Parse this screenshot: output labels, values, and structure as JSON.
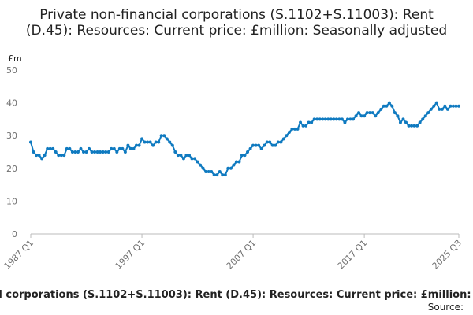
{
  "chart_data": {
    "type": "line",
    "title": "Private non-financial corporations (S.1102+S.11003): Rent (D.45): Resources: Current price: £million: Seasonally adjusted",
    "y_label": "£m",
    "source_label": "Source:",
    "categories": [
      "1987 Q1",
      null,
      null,
      null,
      null,
      null,
      null,
      null,
      null,
      null,
      null,
      null,
      null,
      null,
      null,
      null,
      null,
      null,
      null,
      null,
      null,
      null,
      null,
      null,
      null,
      null,
      null,
      null,
      null,
      null,
      null,
      null,
      null,
      null,
      null,
      null,
      null,
      null,
      null,
      null,
      "1997 Q1",
      null,
      null,
      null,
      null,
      null,
      null,
      null,
      null,
      null,
      null,
      null,
      null,
      null,
      null,
      null,
      null,
      null,
      null,
      null,
      null,
      null,
      null,
      null,
      null,
      null,
      null,
      null,
      null,
      null,
      null,
      null,
      null,
      null,
      null,
      null,
      null,
      null,
      null,
      null,
      "2007 Q1",
      null,
      null,
      null,
      null,
      null,
      null,
      null,
      null,
      null,
      null,
      null,
      null,
      null,
      null,
      null,
      null,
      null,
      null,
      null,
      null,
      null,
      null,
      null,
      null,
      null,
      null,
      null,
      null,
      null,
      null,
      null,
      null,
      null,
      null,
      null,
      null,
      null,
      null,
      null,
      "2017 Q1",
      null,
      null,
      null,
      null,
      null,
      null,
      null,
      null,
      null,
      null,
      null,
      null,
      null,
      null,
      null,
      null,
      null,
      null,
      null,
      null,
      null,
      null,
      null,
      null,
      null,
      null,
      null,
      null,
      null,
      null,
      null,
      null,
      null,
      "2025 Q3"
    ],
    "series": [
      {
        "name": "Rent",
        "color": "#0f7ac0",
        "values": [
          28,
          25,
          24,
          24,
          23,
          24,
          26,
          26,
          26,
          25,
          24,
          24,
          24,
          26,
          26,
          25,
          25,
          25,
          26,
          25,
          25,
          26,
          25,
          25,
          25,
          25,
          25,
          25,
          25,
          26,
          26,
          25,
          26,
          26,
          25,
          27,
          26,
          26,
          27,
          27,
          29,
          28,
          28,
          28,
          27,
          28,
          28,
          30,
          30,
          29,
          28,
          27,
          25,
          24,
          24,
          23,
          24,
          24,
          23,
          23,
          22,
          21,
          20,
          19,
          19,
          19,
          18,
          18,
          19,
          18,
          18,
          20,
          20,
          21,
          22,
          22,
          24,
          24,
          25,
          26,
          27,
          27,
          27,
          26,
          27,
          28,
          28,
          27,
          27,
          28,
          28,
          29,
          30,
          31,
          32,
          32,
          32,
          34,
          33,
          33,
          34,
          34,
          35,
          35,
          35,
          35,
          35,
          35,
          35,
          35,
          35,
          35,
          35,
          34,
          35,
          35,
          35,
          36,
          37,
          36,
          36,
          37,
          37,
          37,
          36,
          37,
          38,
          39,
          39,
          40,
          39,
          37,
          36,
          34,
          35,
          34,
          33,
          33,
          33,
          33,
          34,
          35,
          36,
          37,
          38,
          39,
          40,
          38,
          38,
          39,
          38,
          39,
          39,
          39,
          39
        ]
      }
    ],
    "ylim": [
      0,
      50
    ],
    "yticks": [
      0,
      10,
      20,
      30,
      40,
      50
    ],
    "grid": false
  }
}
